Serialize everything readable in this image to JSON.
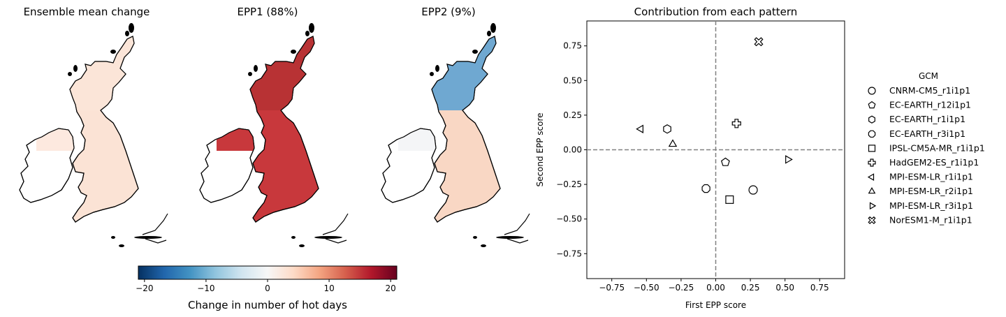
{
  "maps": {
    "panels": [
      {
        "title": "Ensemble mean change",
        "fill": "#fbe3d5",
        "ireland_fill": "#fde9df",
        "scotland_fill": "#fbe5d8"
      },
      {
        "title": "EPP1 (88%)",
        "fill": "#c8383c",
        "ireland_fill": "#c8383c",
        "scotland_fill": "#b83234"
      },
      {
        "title": "EPP2 (9%)",
        "fill": "#f9d7c4",
        "ireland_fill": "#f4f5f7",
        "scotland_fill": "#6fa8d1"
      }
    ]
  },
  "colorbar": {
    "label": "Change in number of hot days",
    "min": -21,
    "max": 21,
    "ticks": [
      {
        "value": -20,
        "label": "−20"
      },
      {
        "value": -10,
        "label": "−10"
      },
      {
        "value": 0,
        "label": "0"
      },
      {
        "value": 10,
        "label": "10"
      },
      {
        "value": 20,
        "label": "20"
      }
    ],
    "colormap": "RdBu_r",
    "stops": [
      "#053061",
      "#2166ac",
      "#4393c3",
      "#92c5de",
      "#d1e5f0",
      "#f7f7f7",
      "#fddbc7",
      "#f4a582",
      "#d6604d",
      "#b2182b",
      "#67001f"
    ]
  },
  "chart_data": {
    "type": "scatter",
    "title": "Contribution from each pattern",
    "xlabel": "First EPP score",
    "ylabel": "Second EPP score",
    "xlim": [
      -0.93,
      0.93
    ],
    "ylim": [
      -0.93,
      0.93
    ],
    "xticks": [
      {
        "value": -0.75,
        "label": "−0.75"
      },
      {
        "value": -0.5,
        "label": "−0.50"
      },
      {
        "value": -0.25,
        "label": "−0.25"
      },
      {
        "value": 0,
        "label": "0.00"
      },
      {
        "value": 0.25,
        "label": "0.25"
      },
      {
        "value": 0.5,
        "label": "0.50"
      },
      {
        "value": 0.75,
        "label": "0.75"
      }
    ],
    "yticks": [
      {
        "value": -0.75,
        "label": "−0.75"
      },
      {
        "value": -0.5,
        "label": "−0.50"
      },
      {
        "value": -0.25,
        "label": "−0.25"
      },
      {
        "value": 0,
        "label": "0.00"
      },
      {
        "value": 0.25,
        "label": "0.25"
      },
      {
        "value": 0.5,
        "label": "0.50"
      },
      {
        "value": 0.75,
        "label": "0.75"
      }
    ],
    "reference_lines": {
      "x": 0,
      "y": 0,
      "style": "dashed",
      "color": "#808080"
    },
    "legend_title": "GCM",
    "legend_position": "outside right",
    "series": [
      {
        "name": "CNRM-CM5_r1i1p1",
        "marker": "circle",
        "x": 0.27,
        "y": -0.29
      },
      {
        "name": "EC-EARTH_r12i1p1",
        "marker": "pentagon",
        "x": 0.07,
        "y": -0.09
      },
      {
        "name": "EC-EARTH_r1i1p1",
        "marker": "hexagon",
        "x": -0.35,
        "y": 0.15
      },
      {
        "name": "EC-EARTH_r3i1p1",
        "marker": "octagon",
        "x": -0.07,
        "y": -0.28
      },
      {
        "name": "IPSL-CM5A-MR_r1i1p1",
        "marker": "square",
        "x": 0.1,
        "y": -0.36
      },
      {
        "name": "HadGEM2-ES_r1i1p1",
        "marker": "plus",
        "x": 0.15,
        "y": 0.19
      },
      {
        "name": "MPI-ESM-LR_r1i1p1",
        "marker": "triangle-left",
        "x": -0.54,
        "y": 0.15
      },
      {
        "name": "MPI-ESM-LR_r2i1p1",
        "marker": "triangle-up",
        "x": -0.31,
        "y": 0.04
      },
      {
        "name": "MPI-ESM-LR_r3i1p1",
        "marker": "triangle-right",
        "x": 0.52,
        "y": -0.07
      },
      {
        "name": "NorESM1-M_r1i1p1",
        "marker": "x-filled",
        "x": 0.31,
        "y": 0.78
      }
    ]
  }
}
